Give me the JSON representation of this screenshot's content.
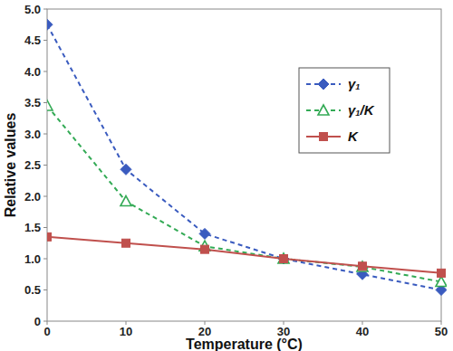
{
  "chart_data": {
    "type": "line",
    "x_label": "Temperature (°C)",
    "y_label": "Relative values",
    "x": [
      0,
      10,
      20,
      30,
      40,
      50
    ],
    "xlim": [
      0,
      50
    ],
    "xticks": [
      0,
      10,
      20,
      30,
      40,
      50
    ],
    "ylim": [
      0,
      5
    ],
    "yticks": [
      0,
      0.5,
      {
        "value": 1,
        "label": "1.0"
      },
      1.5,
      {
        "value": 2,
        "label": "2.0"
      },
      2.5,
      {
        "value": 3,
        "label": "3.0"
      },
      3.5,
      {
        "value": 4,
        "label": "4.0"
      },
      4.5,
      {
        "value": 5,
        "label": "5.0"
      }
    ],
    "grid": false,
    "legend": "upper right",
    "series": [
      {
        "name": "γ₁",
        "color": "#3a5bbf",
        "marker": "diamond",
        "line_style": "dashed",
        "values": [
          4.75,
          2.43,
          1.4,
          1.0,
          0.75,
          0.5
        ]
      },
      {
        "name": "γ₁/K",
        "color": "#33aa55",
        "marker": "triangle",
        "line_style": "dashed",
        "values": [
          3.45,
          1.92,
          1.2,
          1.0,
          0.87,
          0.63
        ]
      },
      {
        "name": "K",
        "color": "#c0504d",
        "marker": "square",
        "line_style": "solid",
        "values": [
          1.35,
          1.25,
          1.15,
          1.0,
          0.88,
          0.77
        ]
      }
    ]
  }
}
